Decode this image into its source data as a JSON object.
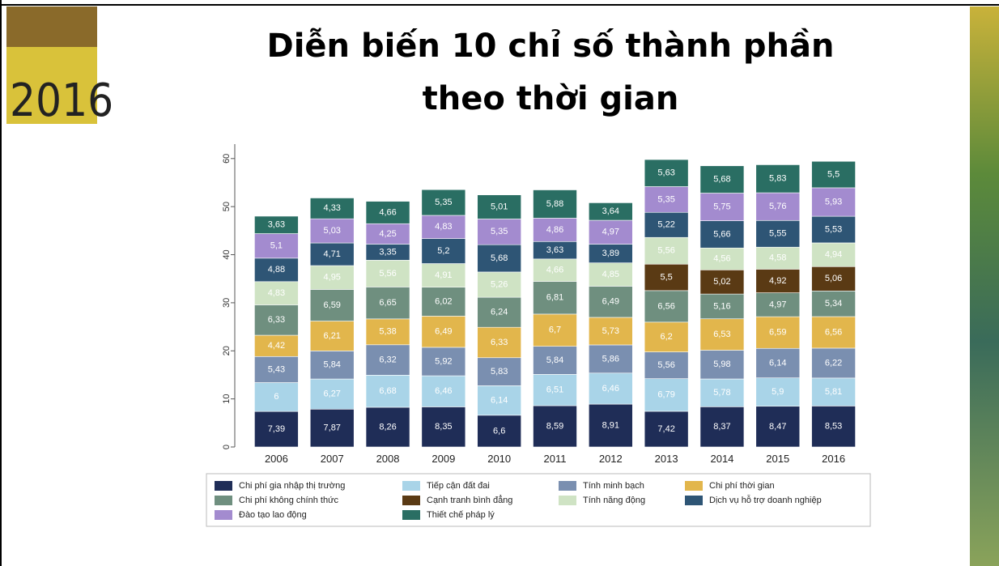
{
  "slide": {
    "title": [
      "Diễn biến 10 chỉ số thành phần",
      "theo thời gian"
    ],
    "logo": "2016"
  },
  "chart_data": {
    "type": "stacked_bar",
    "categories": [
      "2006",
      "2007",
      "2008",
      "2009",
      "2010",
      "2011",
      "2012",
      "2013",
      "2014",
      "2015",
      "2016"
    ],
    "ylim": [
      0,
      63
    ],
    "yticks": [
      0,
      10,
      20,
      30,
      40,
      50,
      60
    ],
    "series": [
      {
        "name": "Chi phí gia nhập thị trường",
        "color": "#1f2d57",
        "values": [
          7.39,
          7.87,
          8.26,
          8.35,
          6.6,
          8.59,
          8.91,
          7.42,
          8.37,
          8.47,
          8.53
        ],
        "value_labels": [
          "7,39",
          "7,87",
          "8,26",
          "8,35",
          "6,6",
          "8,59",
          "8,91",
          "7,42",
          "8,37",
          "8,47",
          "8,53"
        ]
      },
      {
        "name": "Tiếp cận đất đai",
        "color": "#a9d4e8",
        "values": [
          6,
          6.27,
          6.68,
          6.46,
          6.14,
          6.51,
          6.46,
          6.79,
          5.78,
          5.9,
          5.81
        ],
        "value_labels": [
          "6",
          "6,27",
          "6,68",
          "6,46",
          "6,14",
          "6,51",
          "6,46",
          "6,79",
          "5,78",
          "5,9",
          "5,81"
        ]
      },
      {
        "name": "Tính minh bạch",
        "color": "#7a8fb0",
        "values": [
          5.43,
          5.84,
          6.32,
          5.92,
          5.83,
          5.84,
          5.86,
          5.56,
          5.98,
          6.14,
          6.22
        ],
        "value_labels": [
          "5,43",
          "5,84",
          "6,32",
          "5,92",
          "5,83",
          "5,84",
          "5,86",
          "5,56",
          "5,98",
          "6,14",
          "6,22"
        ]
      },
      {
        "name": "Chi phí thời gian",
        "color": "#e2b64c",
        "values": [
          4.42,
          6.21,
          5.38,
          6.49,
          6.33,
          6.7,
          5.73,
          6.2,
          6.53,
          6.59,
          6.56
        ],
        "value_labels": [
          "4,42",
          "6,21",
          "5,38",
          "6,49",
          "6,33",
          "6,7",
          "5,73",
          "6,2",
          "6,53",
          "6,59",
          "6,56"
        ]
      },
      {
        "name": "Chi phí không chính thức",
        "color": "#6f8f7f",
        "values": [
          6.33,
          6.59,
          6.65,
          6.02,
          6.24,
          6.81,
          6.49,
          6.56,
          5.16,
          4.97,
          5.34
        ],
        "value_labels": [
          "6,33",
          "6,59",
          "6,65",
          "6,02",
          "6,24",
          "6,81",
          "6,49",
          "6,56",
          "5,16",
          "4,97",
          "5,34"
        ]
      },
      {
        "name": "Cạnh tranh bình đẳng",
        "color": "#5a3a14",
        "values": [
          null,
          null,
          null,
          null,
          null,
          null,
          null,
          5.5,
          5.02,
          4.92,
          5.06
        ],
        "value_labels": [
          null,
          null,
          null,
          null,
          null,
          null,
          null,
          "5,5",
          "5,02",
          "4,92",
          "5,06"
        ]
      },
      {
        "name": "Tính năng động",
        "color": "#cfe3c4",
        "values": [
          4.83,
          4.95,
          5.56,
          4.91,
          5.26,
          4.66,
          4.85,
          5.56,
          4.56,
          4.58,
          4.94
        ],
        "value_labels": [
          "4,83",
          "4,95",
          "5,56",
          "4,91",
          "5,26",
          "4,66",
          "4,85",
          "5,56",
          "4,56",
          "4,58",
          "4,94"
        ]
      },
      {
        "name": "Dịch vụ hỗ trợ doanh nghiệp",
        "color": "#2e5575",
        "values": [
          4.88,
          4.71,
          3.35,
          5.2,
          5.68,
          3.63,
          3.89,
          5.22,
          5.66,
          5.55,
          5.53
        ],
        "value_labels": [
          "4,88",
          "4,71",
          "3,35",
          "5,2",
          "5,68",
          "3,63",
          "3,89",
          "5,22",
          "5,66",
          "5,55",
          "5,53"
        ]
      },
      {
        "name": "Đào tạo lao động",
        "color": "#a38bcf",
        "values": [
          5.1,
          5.03,
          4.25,
          4.83,
          5.35,
          4.86,
          4.97,
          5.35,
          5.75,
          5.76,
          5.93
        ],
        "value_labels": [
          "5,1",
          "5,03",
          "4,25",
          "4,83",
          "5,35",
          "4,86",
          "4,97",
          "5,35",
          "5,75",
          "5,76",
          "5,93"
        ]
      },
      {
        "name": "Thiết chế pháp lý",
        "color": "#2a6e63",
        "values": [
          3.63,
          4.33,
          4.66,
          5.35,
          5.01,
          5.88,
          3.64,
          5.63,
          5.68,
          5.83,
          5.5
        ],
        "value_labels": [
          "3,63",
          "4,33",
          "4,66",
          "5,35",
          "5,01",
          "5,88",
          "3,64",
          "5,63",
          "5,68",
          "5,83",
          "5,5"
        ]
      }
    ]
  }
}
